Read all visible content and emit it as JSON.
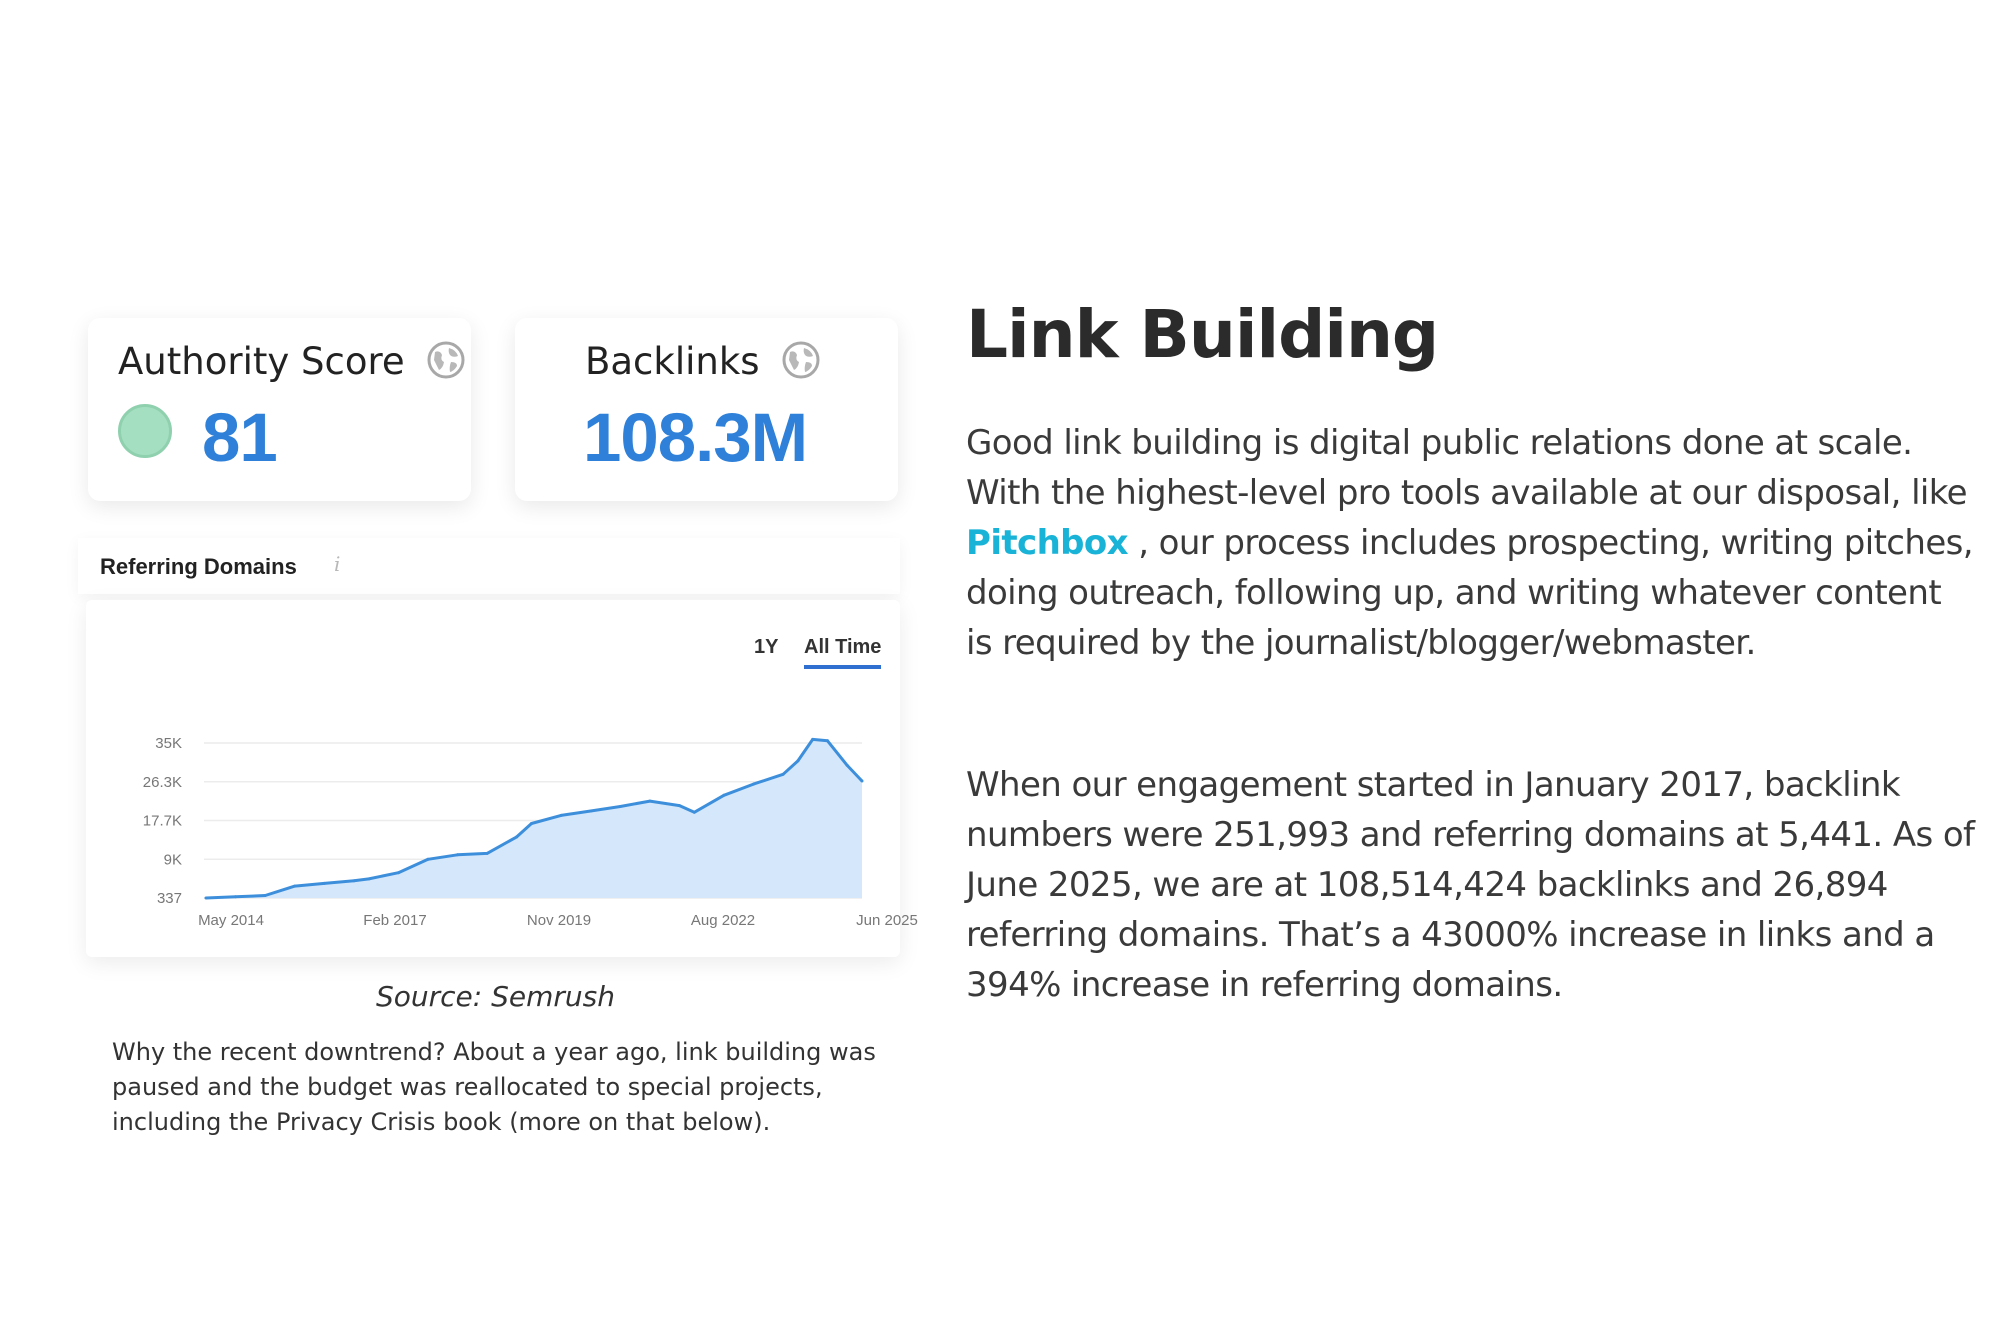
{
  "metrics": {
    "authority": {
      "label": "Authority Score",
      "value": "81",
      "indicator_color": "#a4dfc1"
    },
    "backlinks": {
      "label": "Backlinks",
      "value": "108.3M"
    }
  },
  "referring_domains": {
    "title": "Referring Domains",
    "info_icon": "info-icon",
    "range_options": [
      "1Y",
      "All Time"
    ],
    "active_range": "All Time"
  },
  "chart_data": {
    "type": "area",
    "title": "Referring Domains",
    "x_tick_labels": [
      "May 2014",
      "Feb 2017",
      "Nov 2019",
      "Aug 2022",
      "Jun 2025"
    ],
    "y_tick_labels": [
      "35K",
      "26.3K",
      "17.7K",
      "9K",
      "337"
    ],
    "ylim": [
      337,
      35000
    ],
    "grid": true,
    "series": [
      {
        "color": "#3d8fdc",
        "fill": "#d5e7fa",
        "x": [
          "2014-05",
          "2014-11",
          "2015-05",
          "2015-11",
          "2016-05",
          "2016-11",
          "2017-02",
          "2017-08",
          "2018-02",
          "2018-08",
          "2019-02",
          "2019-08",
          "2019-11",
          "2020-05",
          "2020-11",
          "2021-05",
          "2021-11",
          "2022-05",
          "2022-08",
          "2023-02",
          "2023-08",
          "2024-02",
          "2024-05",
          "2024-08",
          "2024-11",
          "2025-03",
          "2025-06"
        ],
        "y": [
          337,
          600,
          900,
          3000,
          3600,
          4200,
          4600,
          6000,
          9000,
          10000,
          10300,
          14000,
          17000,
          18800,
          19800,
          20800,
          22000,
          21000,
          19500,
          23300,
          25800,
          28000,
          31000,
          35800,
          35500,
          30000,
          26500
        ]
      }
    ]
  },
  "source_caption": "Source: Semrush",
  "note": "Why the recent downtrend? About a year ago, link building was paused and the budget was reallocated to special projects, including the Privacy Crisis book (more on that below).",
  "article": {
    "heading": "Link Building",
    "para1_before": "Good link building is digital public relations done at scale. With the highest-level pro tools available at our disposal, like ",
    "para1_link": "Pitchbox",
    "para1_after": " , our process includes prospecting, writing pitches, doing outreach, following up, and writing whatever content is required by the journalist/blogger/webmaster.",
    "para2": "When our engagement started in January 2017, backlink numbers were 251,993 and referring domains at 5,441. As of June 2025, we are at 108,514,424 backlinks and 26,894 referring domains. That’s a 43000% increase in links and a 394% increase in referring domains.",
    "link_color": "#19b3d8"
  }
}
